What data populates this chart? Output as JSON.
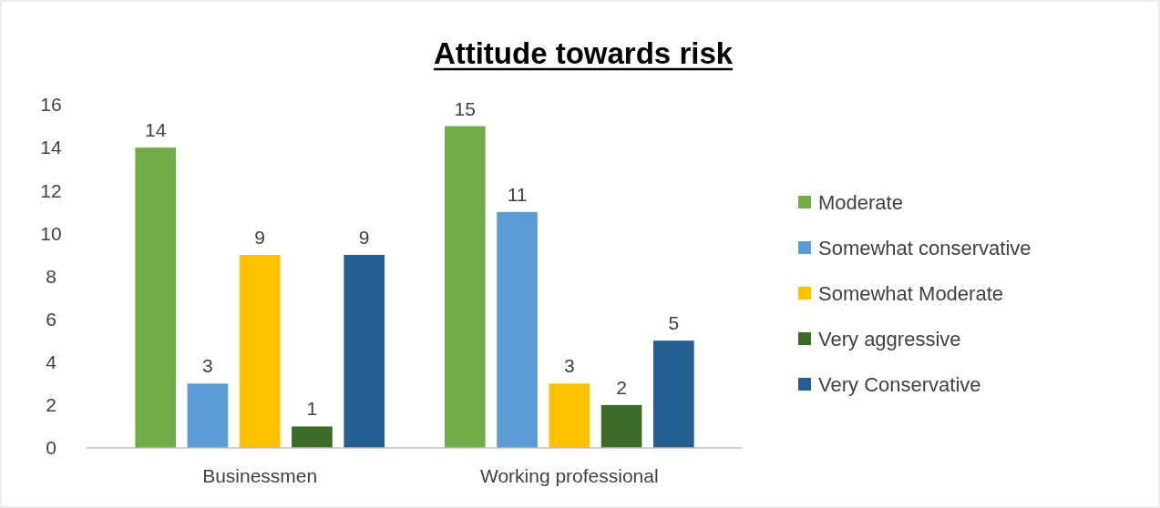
{
  "chart_data": {
    "type": "bar",
    "title": "Attitude towards risk",
    "categories": [
      "Businessmen",
      "Working professional"
    ],
    "series": [
      {
        "name": "Moderate",
        "color": "#70ad47",
        "values": [
          14,
          15
        ]
      },
      {
        "name": "Somewhat conservative",
        "color": "#5b9bd5",
        "values": [
          3,
          11
        ]
      },
      {
        "name": "Somewhat Moderate",
        "color": "#ffc000",
        "values": [
          9,
          3
        ]
      },
      {
        "name": "Very aggressive",
        "color": "#3d6b2a",
        "values": [
          1,
          2
        ]
      },
      {
        "name": "Very Conservative",
        "color": "#255e91",
        "values": [
          9,
          5
        ]
      }
    ],
    "ylim": [
      0,
      16
    ],
    "yticks": [
      0,
      2,
      4,
      6,
      8,
      10,
      12,
      14,
      16
    ],
    "grid": false,
    "legend": "right",
    "data_labels": true
  }
}
